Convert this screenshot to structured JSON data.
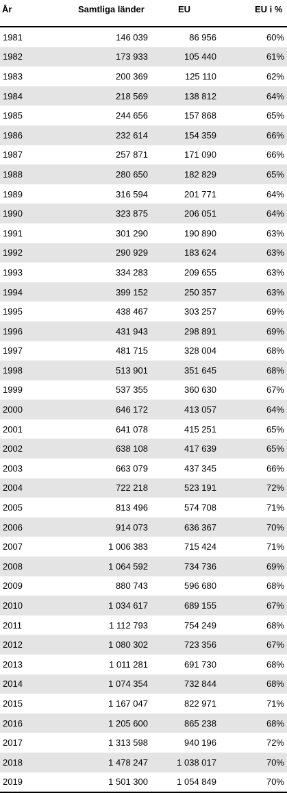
{
  "headers": {
    "year": "År",
    "all": "Samtliga länder",
    "eu": "EU",
    "eu_pct": "EU i %"
  },
  "rows": [
    {
      "year": "1981",
      "all": "146 039",
      "eu": "86 956",
      "pct": "60%"
    },
    {
      "year": "1982",
      "all": "173 933",
      "eu": "105 440",
      "pct": "61%"
    },
    {
      "year": "1983",
      "all": "200 369",
      "eu": "125 110",
      "pct": "62%"
    },
    {
      "year": "1984",
      "all": "218 569",
      "eu": "138 812",
      "pct": "64%"
    },
    {
      "year": "1985",
      "all": "244 656",
      "eu": "157 868",
      "pct": "65%"
    },
    {
      "year": "1986",
      "all": "232 614",
      "eu": "154 359",
      "pct": "66%"
    },
    {
      "year": "1987",
      "all": "257 871",
      "eu": "171 090",
      "pct": "66%"
    },
    {
      "year": "1988",
      "all": "280 650",
      "eu": "182 829",
      "pct": "65%"
    },
    {
      "year": "1989",
      "all": "316 594",
      "eu": "201 771",
      "pct": "64%"
    },
    {
      "year": "1990",
      "all": "323 875",
      "eu": "206 051",
      "pct": "64%"
    },
    {
      "year": "1991",
      "all": "301 290",
      "eu": "190 890",
      "pct": "63%"
    },
    {
      "year": "1992",
      "all": "290 929",
      "eu": "183 624",
      "pct": "63%"
    },
    {
      "year": "1993",
      "all": "334 283",
      "eu": "209 655",
      "pct": "63%"
    },
    {
      "year": "1994",
      "all": "399 152",
      "eu": "250 357",
      "pct": "63%"
    },
    {
      "year": "1995",
      "all": "438 467",
      "eu": "303 257",
      "pct": "69%"
    },
    {
      "year": "1996",
      "all": "431 943",
      "eu": "298 891",
      "pct": "69%"
    },
    {
      "year": "1997",
      "all": "481 715",
      "eu": "328 004",
      "pct": "68%"
    },
    {
      "year": "1998",
      "all": "513 901",
      "eu": "351 645",
      "pct": "68%"
    },
    {
      "year": "1999",
      "all": "537 355",
      "eu": "360 630",
      "pct": "67%"
    },
    {
      "year": "2000",
      "all": "646 172",
      "eu": "413 057",
      "pct": "64%"
    },
    {
      "year": "2001",
      "all": "641 078",
      "eu": "415 251",
      "pct": "65%"
    },
    {
      "year": "2002",
      "all": "638 108",
      "eu": "417 639",
      "pct": "65%"
    },
    {
      "year": "2003",
      "all": "663 079",
      "eu": "437 345",
      "pct": "66%"
    },
    {
      "year": "2004",
      "all": "722 218",
      "eu": "523 191",
      "pct": "72%"
    },
    {
      "year": "2005",
      "all": "813 496",
      "eu": "574 708",
      "pct": "71%"
    },
    {
      "year": "2006",
      "all": "914 073",
      "eu": "636 367",
      "pct": "70%"
    },
    {
      "year": "2007",
      "all": "1 006 383",
      "eu": "715 424",
      "pct": "71%"
    },
    {
      "year": "2008",
      "all": "1 064 592",
      "eu": "734 736",
      "pct": "69%"
    },
    {
      "year": "2009",
      "all": "880 743",
      "eu": "596 680",
      "pct": "68%"
    },
    {
      "year": "2010",
      "all": "1 034 617",
      "eu": "689 155",
      "pct": "67%"
    },
    {
      "year": "2011",
      "all": "1 112 793",
      "eu": "754 249",
      "pct": "68%"
    },
    {
      "year": "2012",
      "all": "1 080 302",
      "eu": "723 356",
      "pct": "67%"
    },
    {
      "year": "2013",
      "all": "1 011 281",
      "eu": "691 730",
      "pct": "68%"
    },
    {
      "year": "2014",
      "all": "1 074 354",
      "eu": "732 844",
      "pct": "68%"
    },
    {
      "year": "2015",
      "all": "1 167 047",
      "eu": "822 971",
      "pct": "71%"
    },
    {
      "year": "2016",
      "all": "1 205 600",
      "eu": "865 238",
      "pct": "68%"
    },
    {
      "year": "2017",
      "all": "1 313 598",
      "eu": "940 196",
      "pct": "72%"
    },
    {
      "year": "2018",
      "all": "1 478 247",
      "eu": "1 038 017",
      "pct": "70%"
    },
    {
      "year": "2019",
      "all": "1 501 300",
      "eu": "1 054 849",
      "pct": "70%"
    }
  ],
  "colors": {
    "stripe": "#e4e4e4",
    "rule": "#000000"
  }
}
